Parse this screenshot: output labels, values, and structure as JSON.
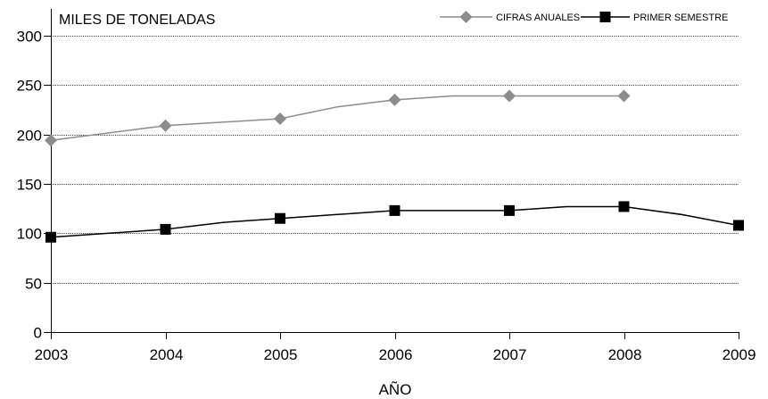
{
  "chart_data": {
    "type": "line",
    "ylabel": "MILES DE TONELADAS",
    "xlabel": "AÑO",
    "ylim": [
      0,
      300
    ],
    "xlim": [
      2003,
      2009
    ],
    "yticks": [
      "0",
      "50",
      "100",
      "150",
      "200",
      "250",
      "300"
    ],
    "xticks": [
      "2003",
      "2004",
      "2005",
      "2006",
      "2007",
      "2008",
      "2009"
    ],
    "grid": true,
    "legend_position": "top-right",
    "series": [
      {
        "name": "CIFRAS ANUALES",
        "color": "#8c8c8c",
        "marker": "diamond",
        "x": [
          2003,
          2004,
          2005,
          2005.5,
          2006,
          2006.5,
          2007,
          2007.5,
          2008
        ],
        "y": [
          194,
          209,
          216,
          228,
          235,
          239,
          239,
          239,
          239
        ]
      },
      {
        "name": "PRIMER SEMESTRE",
        "color": "#000000",
        "marker": "square",
        "x": [
          2003,
          2004,
          2004.5,
          2005,
          2006,
          2006.5,
          2007,
          2007.5,
          2008,
          2008.5,
          2009
        ],
        "y": [
          96,
          104,
          111,
          115,
          123,
          123,
          123,
          127,
          127,
          119,
          108
        ]
      }
    ]
  }
}
